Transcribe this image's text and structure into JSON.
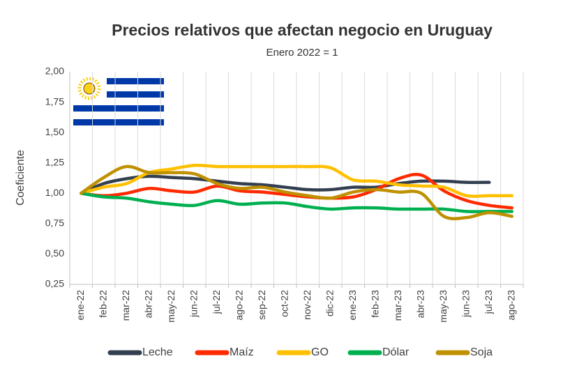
{
  "chart_data": {
    "type": "line",
    "title": "Precios relativos que afectan negocio en Uruguay",
    "subtitle": "Enero 2022 = 1",
    "y_label": "Coeficiente",
    "categories": [
      "ene-22",
      "feb-22",
      "mar-22",
      "abr-22",
      "may-22",
      "jun-22",
      "jul-22",
      "ago-22",
      "sep-22",
      "oct-22",
      "nov-22",
      "dic-22",
      "ene-23",
      "feb-23",
      "mar-23",
      "abr-23",
      "may-23",
      "jun-23",
      "jul-23",
      "ago-23"
    ],
    "series": [
      {
        "name": "Leche",
        "color": "#333f50",
        "values": [
          1.0,
          1.08,
          1.12,
          1.14,
          1.13,
          1.12,
          1.1,
          1.08,
          1.07,
          1.05,
          1.03,
          1.03,
          1.05,
          1.05,
          1.08,
          1.1,
          1.1,
          1.09,
          1.09,
          null
        ]
      },
      {
        "name": "Maíz",
        "color": "#ff2a00",
        "values": [
          1.0,
          0.98,
          1.0,
          1.04,
          1.02,
          1.01,
          1.06,
          1.02,
          1.01,
          0.99,
          0.97,
          0.96,
          0.97,
          1.03,
          1.12,
          1.15,
          1.02,
          0.94,
          0.9,
          0.88
        ]
      },
      {
        "name": "GO",
        "color": "#ffc000",
        "values": [
          1.0,
          1.05,
          1.08,
          1.17,
          1.2,
          1.23,
          1.22,
          1.22,
          1.22,
          1.22,
          1.22,
          1.21,
          1.11,
          1.1,
          1.07,
          1.06,
          1.05,
          0.98,
          0.98,
          0.98
        ]
      },
      {
        "name": "Dólar",
        "color": "#00b050",
        "values": [
          1.0,
          0.97,
          0.96,
          0.93,
          0.91,
          0.9,
          0.94,
          0.91,
          0.92,
          0.92,
          0.89,
          0.87,
          0.88,
          0.88,
          0.87,
          0.87,
          0.87,
          0.85,
          0.85,
          0.85
        ]
      },
      {
        "name": "Soja",
        "color": "#bf9000",
        "values": [
          1.0,
          1.13,
          1.22,
          1.17,
          1.17,
          1.16,
          1.08,
          1.04,
          1.05,
          1.01,
          0.98,
          0.96,
          1.01,
          1.03,
          1.01,
          1.0,
          0.81,
          0.8,
          0.84,
          0.81
        ]
      }
    ],
    "ylim": [
      0.25,
      2.0
    ],
    "yticks": [
      {
        "value": 0.25,
        "label": "0,25"
      },
      {
        "value": 0.5,
        "label": "0,50"
      },
      {
        "value": 0.75,
        "label": "0,75"
      },
      {
        "value": 1.0,
        "label": "1,00"
      },
      {
        "value": 1.25,
        "label": "1,25"
      },
      {
        "value": 1.5,
        "label": "1,50"
      },
      {
        "value": 1.75,
        "label": "1,75"
      },
      {
        "value": 2.0,
        "label": "2,00"
      }
    ],
    "legend": "bottom"
  }
}
